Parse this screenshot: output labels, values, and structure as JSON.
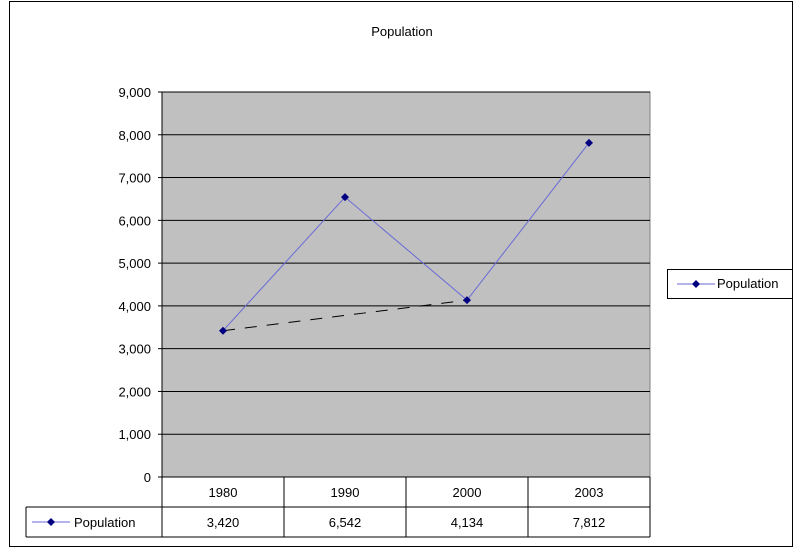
{
  "chart_data": {
    "type": "line",
    "title": "Population",
    "categories": [
      "1980",
      "1990",
      "2000",
      "2003"
    ],
    "series": [
      {
        "name": "Population",
        "values": [
          3420,
          6542,
          4134,
          7812
        ]
      }
    ],
    "data_table": {
      "row_label": "Population",
      "values": [
        "3,420",
        "6,542",
        "4,134",
        "7,812"
      ]
    },
    "trendline": {
      "style": "dashed",
      "from": "1980",
      "to": "2000",
      "values": [
        3420,
        4134
      ]
    },
    "yticks": [
      "0",
      "1,000",
      "2,000",
      "3,000",
      "4,000",
      "5,000",
      "6,000",
      "7,000",
      "8,000",
      "9,000"
    ],
    "ylim": [
      0,
      9000
    ],
    "grid": true,
    "legend": {
      "position": "right",
      "label": "Population"
    },
    "colors": {
      "plot_area": "#c0c0c0",
      "series_line": "#6a6ad6",
      "marker": "#000080",
      "trendline": "#000000",
      "gridline": "#000000"
    }
  }
}
